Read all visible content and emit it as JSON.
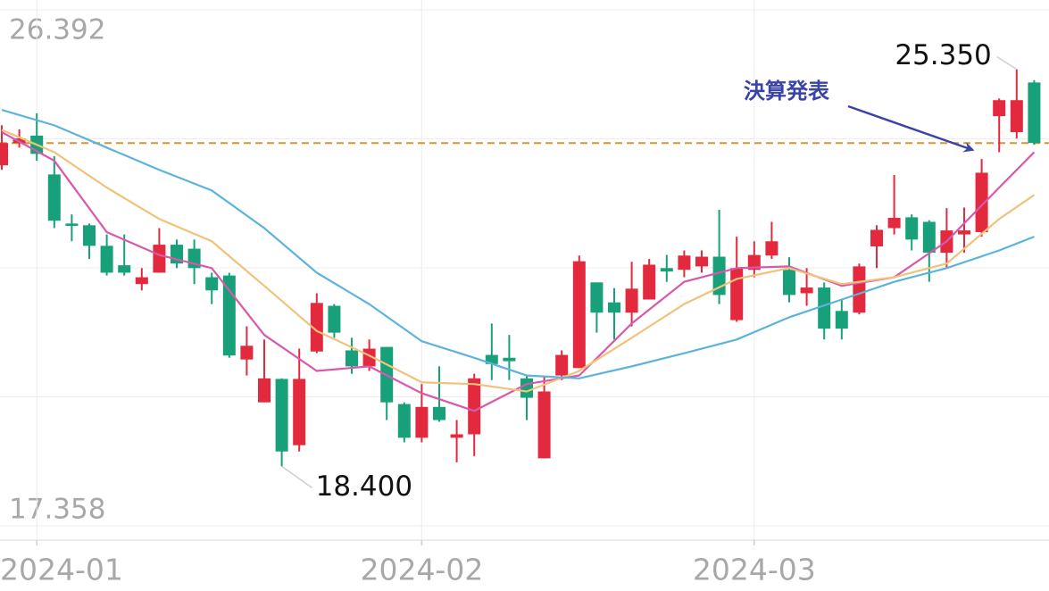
{
  "chart_data": {
    "type": "candlestick",
    "categories": [
      null,
      null,
      "2024-01",
      null,
      null,
      null,
      null,
      null,
      null,
      null,
      null,
      null,
      null,
      null,
      null,
      null,
      null,
      null,
      null,
      null,
      null,
      null,
      null,
      null,
      "2024-02",
      null,
      null,
      null,
      null,
      null,
      null,
      null,
      null,
      null,
      null,
      null,
      null,
      null,
      null,
      null,
      null,
      null,
      null,
      "2024-03",
      null,
      null,
      null,
      null,
      null,
      null,
      null,
      null,
      null,
      null,
      null,
      null,
      null,
      null,
      null,
      null
    ],
    "open": [
      23.67,
      24.06,
      24.19,
      23.51,
      22.65,
      22.62,
      22.26,
      21.92,
      21.59,
      21.79,
      22.28,
      22.21,
      21.71,
      21.74,
      20.27,
      19.52,
      19.93,
      18.77,
      20.41,
      21.21,
      20.43,
      20.15,
      20.49,
      19.49,
      18.9,
      19.44,
      18.9,
      18.96,
      20.35,
      20.3,
      19.94,
      18.54,
      19.99,
      20.12,
      21.62,
      21.27,
      21.09,
      21.32,
      21.87,
      21.84,
      21.9,
      22.07,
      20.96,
      21.84,
      22.09,
      21.84,
      21.43,
      21.53,
      21.12,
      21.09,
      22.25,
      22.57,
      22.76,
      22.68,
      22.14,
      22.46,
      22.5,
      24.53,
      24.25,
      25.12
    ],
    "high": [
      24.37,
      24.3,
      24.58,
      23.83,
      22.81,
      22.65,
      22.46,
      22.46,
      21.87,
      22.57,
      22.37,
      22.37,
      21.79,
      21.79,
      20.85,
      20.62,
      19.94,
      20.46,
      21.43,
      21.24,
      20.65,
      20.62,
      20.49,
      19.52,
      19.84,
      20.15,
      19.21,
      20.02,
      20.9,
      20.7,
      19.99,
      19.99,
      20.43,
      22.09,
      21.62,
      21.52,
      21.98,
      22.03,
      22.1,
      22.18,
      22.18,
      22.89,
      22.42,
      22.34,
      22.68,
      22.06,
      21.87,
      21.62,
      21.32,
      21.95,
      22.62,
      23.5,
      22.81,
      22.71,
      22.92,
      22.93,
      23.78,
      24.84,
      25.35,
      25.16
    ],
    "low": [
      23.59,
      23.98,
      23.75,
      22.57,
      22.34,
      22.03,
      21.74,
      21.74,
      21.48,
      21.79,
      21.87,
      21.59,
      21.24,
      20.3,
      19.99,
      19.52,
      18.4,
      18.66,
      20.38,
      20.65,
      20.02,
      20.07,
      19.21,
      18.82,
      18.82,
      19.18,
      18.47,
      18.58,
      19.91,
      19.91,
      19.21,
      18.54,
      19.91,
      20.12,
      20.74,
      20.62,
      20.85,
      21.32,
      21.63,
      21.71,
      21.79,
      21.24,
      20.93,
      21.71,
      22.03,
      21.27,
      21.21,
      20.62,
      20.62,
      21.06,
      21.87,
      22.46,
      22.18,
      21.63,
      21.87,
      22.14,
      22.42,
      23.9,
      24.14,
      24.03
    ],
    "close": [
      24.06,
      24.14,
      23.87,
      22.7,
      22.61,
      22.26,
      21.79,
      21.79,
      21.71,
      22.28,
      21.95,
      21.87,
      21.48,
      20.34,
      20.51,
      19.94,
      18.66,
      19.93,
      21.26,
      20.74,
      20.15,
      20.46,
      19.52,
      18.9,
      19.44,
      19.21,
      18.96,
      19.94,
      20.19,
      20.24,
      19.6,
      19.71,
      20.35,
      21.99,
      21.09,
      21.09,
      21.51,
      21.93,
      21.81,
      22.09,
      22.07,
      21.4,
      21.87,
      22.1,
      22.34,
      21.4,
      21.53,
      20.81,
      20.81,
      21.9,
      22.54,
      22.75,
      22.37,
      22.14,
      22.53,
      22.53,
      23.54,
      24.81,
      24.81,
      24.06
    ],
    "up_color": "#e3293d",
    "down_color": "#17a07a",
    "moving_averages": [
      {
        "color": "#d858aa",
        "x": [
          0,
          3,
          6,
          9,
          12,
          15,
          18,
          21,
          24,
          27,
          30,
          33,
          36,
          39,
          42,
          45,
          48,
          51,
          54,
          57,
          59
        ],
        "values": [
          24.25,
          23.75,
          22.5,
          22.1,
          21.87,
          20.7,
          20.07,
          20.15,
          19.68,
          19.37,
          19.84,
          19.99,
          20.9,
          21.63,
          21.87,
          21.9,
          21.56,
          21.71,
          22.34,
          23.28,
          23.9
        ]
      },
      {
        "color": "#f0c27a",
        "x": [
          0,
          3,
          6,
          9,
          12,
          15,
          18,
          21,
          24,
          27,
          30,
          33,
          36,
          39,
          42,
          45,
          48,
          51,
          54,
          57,
          59
        ],
        "values": [
          24.29,
          23.9,
          23.28,
          22.73,
          22.34,
          21.56,
          20.77,
          20.34,
          19.87,
          19.84,
          19.71,
          20.07,
          20.65,
          21.24,
          21.68,
          21.87,
          21.59,
          21.71,
          21.95,
          22.73,
          23.15
        ]
      },
      {
        "color": "#5eb3dc",
        "x": [
          0,
          3,
          6,
          9,
          12,
          15,
          18,
          21,
          24,
          27,
          30,
          33,
          36,
          39,
          42,
          45,
          48,
          51,
          54,
          57,
          59
        ],
        "values": [
          24.64,
          24.37,
          23.98,
          23.59,
          23.23,
          22.57,
          21.79,
          21.24,
          20.59,
          20.3,
          19.99,
          19.94,
          20.15,
          20.38,
          20.62,
          21.01,
          21.32,
          21.63,
          21.87,
          22.18,
          22.42
        ]
      }
    ],
    "reference_line": {
      "value": 24.06,
      "color": "#e0922a"
    },
    "ylim": [
      17.358,
      26.392
    ],
    "yticks": [
      {
        "value": 26.392,
        "label": "26.392"
      },
      {
        "value": 17.358,
        "label": "17.358"
      }
    ],
    "annotations": [
      {
        "text": "25.350",
        "value": 25.35,
        "index": 58
      },
      {
        "text": "18.400",
        "value": 18.4,
        "index": 16
      }
    ],
    "callout": {
      "text": "決算発表",
      "color": "#3a44a8",
      "index": 56
    }
  }
}
